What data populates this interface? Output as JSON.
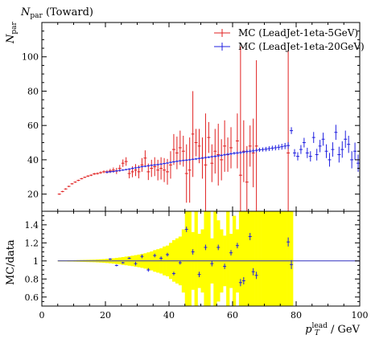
{
  "chart_data": [
    {
      "type": "scatter",
      "title": "N_par (Toward)",
      "title_main": "N",
      "title_sub": "par",
      "title_tail": " (Toward)",
      "ylabel_main": "N",
      "ylabel_sub": "par",
      "xlim": [
        0,
        100
      ],
      "ylim": [
        10,
        120
      ],
      "yticks": [
        20,
        40,
        60,
        80,
        100
      ],
      "legend_position": "top-right",
      "series": [
        {
          "name": "MC (LeadJet-1eta-5GeV)",
          "color": "#e02020",
          "x": [
            5.5,
            6.5,
            7.5,
            8.5,
            9.5,
            10.5,
            11.5,
            12.5,
            13.5,
            14.5,
            15.5,
            16.5,
            17.5,
            18.5,
            19.5,
            20.5,
            21.5,
            22.5,
            23.5,
            24.5,
            25.5,
            26.5,
            27.5,
            28.5,
            29.5,
            30.5,
            31.5,
            32.5,
            33.5,
            34.5,
            35.5,
            36.5,
            37.5,
            38.5,
            39.5,
            40.5,
            41.5,
            42.5,
            43.5,
            44.5,
            45.5,
            46.5,
            47.5,
            48.5,
            49.5,
            50.5,
            51.5,
            52.5,
            53.5,
            54.5,
            55.5,
            56.5,
            57.5,
            58.5,
            59.5,
            61.5,
            62.5,
            63.5,
            64.5,
            65.5,
            66.5,
            67.5,
            77.5
          ],
          "y": [
            20,
            21.5,
            23,
            24.5,
            26,
            27,
            28,
            29,
            29.8,
            30.5,
            31,
            31.8,
            32,
            32.5,
            33,
            33,
            33.5,
            34,
            33.5,
            35,
            38,
            39,
            32,
            33,
            34,
            33,
            37,
            41,
            33,
            35,
            36,
            34,
            35,
            34,
            33,
            37,
            46,
            44,
            47,
            45,
            32,
            34,
            55,
            50,
            48,
            41,
            37,
            53,
            38,
            45,
            43,
            40,
            48,
            43,
            47,
            51,
            31,
            45,
            27,
            48,
            44,
            48,
            44
          ],
          "err": [
            0.4,
            0.4,
            0.4,
            0.4,
            0.4,
            0.4,
            0.4,
            0.4,
            0.4,
            0.5,
            0.5,
            0.6,
            0.6,
            0.7,
            0.8,
            1.0,
            1.2,
            1.5,
            1.8,
            2.0,
            2.2,
            2.5,
            2.8,
            3.2,
            3.5,
            3.8,
            4.0,
            4.5,
            4.8,
            5.0,
            5.5,
            6.0,
            6.5,
            7.0,
            7.5,
            8.0,
            9.0,
            9.5,
            10,
            9,
            17,
            19,
            25,
            8,
            10,
            12,
            30,
            9,
            11,
            13,
            18,
            12,
            15,
            10,
            12,
            16,
            75,
            18,
            21,
            12,
            20,
            50,
            60
          ]
        },
        {
          "name": "MC (LeadJet-1eta-20GeV)",
          "color": "#2020e0",
          "x": [
            20.5,
            21.5,
            22.5,
            23.5,
            24.5,
            25.5,
            26.5,
            27.5,
            28.5,
            29.5,
            30.5,
            31.5,
            32.5,
            33.5,
            34.5,
            35.5,
            36.5,
            37.5,
            38.5,
            39.5,
            40.5,
            41.5,
            42.5,
            43.5,
            44.5,
            45.5,
            46.5,
            47.5,
            48.5,
            49.5,
            50.5,
            51.5,
            52.5,
            53.5,
            54.5,
            55.5,
            56.5,
            57.5,
            58.5,
            59.5,
            60.5,
            61.5,
            62.5,
            63.5,
            64.5,
            65.5,
            66.5,
            67.5,
            68.5,
            69.5,
            70.5,
            71.5,
            72.5,
            73.5,
            74.5,
            75.5,
            76.5,
            77.5,
            78.5,
            79.5,
            80.5,
            81.5,
            82.5,
            83.5,
            84.5,
            85.5,
            86.5,
            87.5,
            88.5,
            89.5,
            90.5,
            91.5,
            92.5,
            93.5,
            94.5,
            95.5,
            96.5,
            97.5,
            98.5,
            99.5
          ],
          "y": [
            32.8,
            33,
            33.2,
            33.5,
            33.8,
            34,
            34.3,
            34.6,
            35,
            35.3,
            35.6,
            36,
            36.2,
            36.5,
            36.8,
            37,
            37.2,
            37.5,
            37.8,
            38.1,
            38.5,
            38.8,
            39.1,
            39.4,
            39.6,
            39.8,
            40,
            40.3,
            40.5,
            40.8,
            41,
            41.3,
            41.5,
            41.8,
            42,
            42.3,
            42.6,
            42.9,
            43.2,
            43.5,
            43.8,
            44,
            44.2,
            44.5,
            44.8,
            45,
            45.2,
            45.5,
            45.8,
            46,
            46.2,
            46.5,
            46.8,
            47,
            47.3,
            47.6,
            48,
            48.3,
            57,
            44,
            42,
            46,
            50,
            44,
            42,
            53,
            43,
            48,
            52,
            45,
            40,
            46,
            56,
            43,
            46,
            52,
            49,
            40,
            45,
            38
          ],
          "err": [
            0.5,
            0.5,
            0.5,
            0.5,
            0.5,
            0.5,
            0.5,
            0.5,
            0.5,
            0.5,
            0.5,
            0.5,
            0.5,
            0.5,
            0.5,
            0.5,
            0.5,
            0.5,
            0.5,
            0.5,
            0.5,
            0.5,
            0.5,
            0.5,
            0.5,
            0.5,
            0.5,
            0.5,
            0.6,
            0.6,
            0.6,
            0.6,
            0.6,
            0.6,
            0.7,
            0.7,
            0.7,
            0.7,
            0.8,
            0.8,
            0.8,
            0.9,
            0.9,
            0.9,
            1.0,
            1.0,
            1.1,
            1.1,
            1.2,
            1.2,
            1.3,
            1.4,
            1.4,
            1.5,
            1.6,
            1.7,
            1.8,
            2.0,
            2.0,
            2.2,
            2.4,
            2.6,
            2.8,
            3.0,
            3.0,
            3.2,
            3.4,
            3.6,
            3.8,
            4.0,
            4.0,
            4.2,
            4.4,
            4.6,
            4.8,
            5.0,
            5.0,
            5.0,
            5.0,
            5.0
          ]
        }
      ]
    },
    {
      "type": "scatter",
      "ylabel": "MC/data",
      "xlabel_main": "p",
      "xlabel_sub": "T",
      "xlabel_sup": "lead",
      "xlabel_tail": " / GeV",
      "xlim": [
        0,
        100
      ],
      "ylim": [
        0.5,
        1.55
      ],
      "xticks": [
        0,
        20,
        40,
        60,
        80,
        100
      ],
      "yticks": [
        0.6,
        0.8,
        1,
        1.2,
        1.4
      ],
      "ytick_labels": [
        "0.6",
        "0.8",
        "1",
        "1.2",
        "1.4"
      ],
      "band_color": "#ffff00",
      "reference_color": "#3030c0",
      "band": {
        "x": [
          5,
          6,
          7,
          8,
          9,
          10,
          11,
          12,
          13,
          14,
          15,
          16,
          17,
          18,
          19,
          20,
          21,
          22,
          23,
          24,
          25,
          26,
          27,
          28,
          29,
          30,
          31,
          32,
          33,
          34,
          35,
          36,
          37,
          38,
          39,
          40,
          41,
          42,
          43,
          44,
          45,
          46,
          47,
          48,
          49,
          50,
          51,
          52,
          53,
          54,
          55,
          56,
          57,
          58,
          59,
          60,
          61,
          62,
          63,
          64,
          65,
          66,
          67,
          68,
          69,
          70,
          71,
          72,
          73,
          74,
          75,
          76,
          77,
          78,
          79,
          80,
          81,
          82,
          83,
          84,
          85,
          86,
          87,
          88,
          89,
          90,
          91,
          92,
          93,
          94,
          95,
          96,
          97,
          98,
          99,
          100
        ],
        "half_width": [
          0.006,
          0.006,
          0.006,
          0.007,
          0.007,
          0.008,
          0.009,
          0.01,
          0.011,
          0.012,
          0.013,
          0.014,
          0.016,
          0.018,
          0.02,
          0.023,
          0.026,
          0.03,
          0.034,
          0.038,
          0.043,
          0.048,
          0.053,
          0.058,
          0.064,
          0.07,
          0.077,
          0.085,
          0.095,
          0.105,
          0.12,
          0.13,
          0.14,
          0.16,
          0.17,
          0.2,
          0.23,
          0.25,
          0.27,
          0.35,
          0.6,
          0.6,
          0.32,
          0.6,
          0.3,
          0.35,
          0.6,
          0.6,
          0.25,
          0.6,
          0.45,
          0.35,
          0.28,
          0.6,
          0.3,
          0.5,
          0.35,
          0.6,
          0.6,
          0.6,
          0.6,
          0.6,
          0.6,
          0.6,
          0.6,
          0.6,
          0.6,
          0.6,
          0.6,
          0.6,
          0.6,
          0.6,
          0.6,
          0.6,
          0.6,
          0.6,
          0.6,
          0.6,
          0.6,
          0.6,
          0.6,
          0.6,
          0.6,
          0.6,
          0.6,
          0.6,
          0.6,
          0.6,
          0.6,
          0.6,
          0.6,
          0.6,
          0.6,
          0.6,
          0.6,
          0.6
        ]
      },
      "band_gaps": [
        [
          78.5,
          100
        ]
      ],
      "points": {
        "x": [
          21.5,
          23.5,
          25.5,
          27.5,
          29.5,
          31.5,
          33.5,
          35.5,
          37.5,
          39.5,
          41.5,
          43.5,
          45.5,
          47.5,
          49.5,
          51.5,
          53.5,
          55.5,
          57.5,
          59.5,
          61.5,
          62.5,
          63.5,
          65.5,
          66.5,
          67.5,
          77.5,
          78.5
        ],
        "y": [
          1.02,
          0.95,
          0.98,
          1.03,
          0.97,
          1.05,
          0.9,
          1.06,
          1.03,
          1.07,
          0.86,
          0.98,
          1.35,
          1.1,
          0.85,
          1.15,
          0.97,
          1.15,
          0.94,
          1.09,
          1.17,
          0.76,
          0.78,
          1.27,
          0.88,
          0.84,
          1.21,
          0.96
        ],
        "err": [
          0.01,
          0.01,
          0.01,
          0.01,
          0.02,
          0.02,
          0.02,
          0.02,
          0.02,
          0.02,
          0.02,
          0.02,
          0.03,
          0.03,
          0.03,
          0.03,
          0.03,
          0.03,
          0.03,
          0.03,
          0.03,
          0.04,
          0.04,
          0.04,
          0.04,
          0.04,
          0.05,
          0.05
        ],
        "color": "#2020e0"
      }
    }
  ]
}
